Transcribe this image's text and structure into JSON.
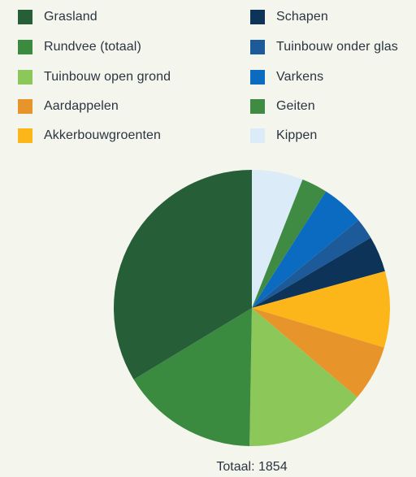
{
  "chart_data": {
    "type": "pie",
    "total_label": "Totaal: 1854",
    "slices": [
      {
        "label": "Kippen",
        "value": 111,
        "color": "#dcebf8"
      },
      {
        "label": "Geiten",
        "value": 56,
        "color": "#3f8b43"
      },
      {
        "label": "Varkens",
        "value": 93,
        "color": "#0b6bc0"
      },
      {
        "label": "Tuinbouw onder glas",
        "value": 46,
        "color": "#1c5a9a"
      },
      {
        "label": "Schapen",
        "value": 78,
        "color": "#0d3358"
      },
      {
        "label": "Akkerbouwgroenten",
        "value": 165,
        "color": "#fdb61a"
      },
      {
        "label": "Aardappelen",
        "value": 122,
        "color": "#e7952a"
      },
      {
        "label": "Tuinbouw open grond",
        "value": 261,
        "color": "#8cc75a"
      },
      {
        "label": "Rundvee (totaal)",
        "value": 298,
        "color": "#3a8a3f"
      },
      {
        "label": "Grasland",
        "value": 624,
        "color": "#265e38"
      }
    ]
  },
  "legend": {
    "left": [
      {
        "label": "Grasland",
        "color": "#265e38"
      },
      {
        "label": "Rundvee (totaal)",
        "color": "#3a8a3f"
      },
      {
        "label": "Tuinbouw open grond",
        "color": "#8cc75a"
      },
      {
        "label": "Aardappelen",
        "color": "#e7952a"
      },
      {
        "label": "Akkerbouwgroenten",
        "color": "#fdb61a"
      }
    ],
    "right": [
      {
        "label": "Schapen",
        "color": "#0d3358"
      },
      {
        "label": "Tuinbouw onder glas",
        "color": "#1c5a9a"
      },
      {
        "label": "Varkens",
        "color": "#0b6bc0"
      },
      {
        "label": "Geiten",
        "color": "#3f8b43"
      },
      {
        "label": "Kippen",
        "color": "#dcebf8"
      }
    ]
  }
}
